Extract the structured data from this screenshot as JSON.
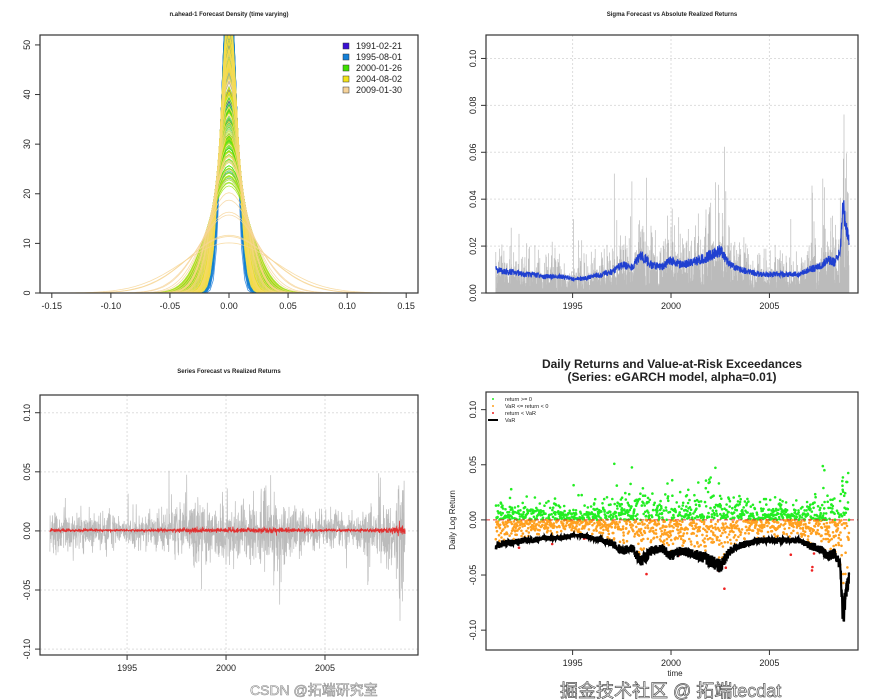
{
  "watermark": {
    "line1": "掘金技术社区 @ 拓端tecdat",
    "line2": "CSDN @拓端研究室"
  },
  "chart_data": [
    {
      "type": "line",
      "title": "n.ahead-1 Forecast Density (time varying)",
      "xlabel": "",
      "ylabel": "",
      "xlim": [
        -0.16,
        0.16
      ],
      "ylim": [
        0,
        52
      ],
      "xticks": [
        "-0.15",
        "-0.10",
        "-0.05",
        "0.00",
        "0.05",
        "0.10",
        "0.15"
      ],
      "yticks": [
        "0",
        "10",
        "20",
        "30",
        "40",
        "50"
      ],
      "legend": {
        "placement": "top-right",
        "entries": [
          {
            "label": "1991-02-21",
            "color": "#3b0fd4"
          },
          {
            "label": "1995-08-01",
            "color": "#1380d8"
          },
          {
            "label": "2000-01-26",
            "color": "#3fe000"
          },
          {
            "label": "2004-08-02",
            "color": "#f2e21a"
          },
          {
            "label": "2009-01-30",
            "color": "#f6d39a"
          }
        ]
      },
      "description_of_series": "normal densities with time-varying sigma (see sigma forecast)"
    },
    {
      "type": "line",
      "title": "Sigma Forecast vs Absolute Realized Returns",
      "xlim": [
        1990.6,
        2009.5
      ],
      "ylim": [
        0,
        0.11
      ],
      "xticks": [
        "1995",
        "2000",
        "2005"
      ],
      "yticks": [
        "0.00",
        "0.02",
        "0.04",
        "0.06",
        "0.08",
        "0.10"
      ],
      "grid": true,
      "series": [
        {
          "label_shown": false,
          "color": "#2040d0",
          "role": "sigma forecast",
          "x": [
            1991.1,
            1991.5,
            1992,
            1992.5,
            1993,
            1993.5,
            1994,
            1994.5,
            1995,
            1995.5,
            1996,
            1996.5,
            1997,
            1997.5,
            1998,
            1998.5,
            1999,
            1999.5,
            2000,
            2000.5,
            2001,
            2001.5,
            2002,
            2002.5,
            2003,
            2003.5,
            2004,
            2004.5,
            2005,
            2005.5,
            2006,
            2006.5,
            2007,
            2007.5,
            2008,
            2008.3,
            2008.6,
            2008.75,
            2008.85,
            2009.05
          ],
          "y": [
            0.01,
            0.009,
            0.009,
            0.008,
            0.008,
            0.007,
            0.007,
            0.007,
            0.006,
            0.006,
            0.007,
            0.008,
            0.009,
            0.012,
            0.011,
            0.016,
            0.012,
            0.011,
            0.014,
            0.012,
            0.013,
            0.014,
            0.016,
            0.018,
            0.012,
            0.01,
            0.009,
            0.008,
            0.008,
            0.008,
            0.008,
            0.008,
            0.01,
            0.011,
            0.014,
            0.013,
            0.018,
            0.04,
            0.03,
            0.022
          ]
        },
        {
          "color": "#bbbbbb",
          "role": "absolute realized returns"
        }
      ]
    },
    {
      "type": "line",
      "title": "Series Forecast vs Realized Returns",
      "xlim": [
        1990.6,
        2009.7
      ],
      "ylim": [
        -0.105,
        0.115
      ],
      "xticks": [
        "1995",
        "2000",
        "2005"
      ],
      "yticks": [
        "-0.10",
        "-0.05",
        "0.00",
        "0.05",
        "0.10"
      ],
      "grid": true,
      "series": [
        {
          "color": "#bbbbbb",
          "role": "realized returns"
        },
        {
          "color": "#e03030",
          "role": "series forecast",
          "approx_value": 0.0005
        }
      ]
    },
    {
      "type": "scatter",
      "title": "Daily Returns and Value-at-Risk Exceedances",
      "subtitle": "(Series: eGARCH model, alpha=0.01)",
      "xlabel": "time",
      "ylabel": "Daily Log Return",
      "xlim": [
        1990.6,
        2009.5
      ],
      "ylim": [
        -0.118,
        0.116
      ],
      "xticks": [
        "1995",
        "2000",
        "2005"
      ],
      "yticks": [
        "-0.10",
        "-0.05",
        "0.00",
        "0.05",
        "0.10"
      ],
      "legend": {
        "placement": "top-left",
        "entries": [
          {
            "label": "return >= 0",
            "color": "#22ee22",
            "kind": "point"
          },
          {
            "label": "VaR <= return < 0",
            "color": "#ffa020",
            "kind": "point"
          },
          {
            "label": "return < VaR",
            "color": "#ee2222",
            "kind": "point"
          },
          {
            "label": "VaR",
            "color": "#000000",
            "kind": "line"
          }
        ]
      },
      "zero_line_color": "#e03030"
    }
  ]
}
